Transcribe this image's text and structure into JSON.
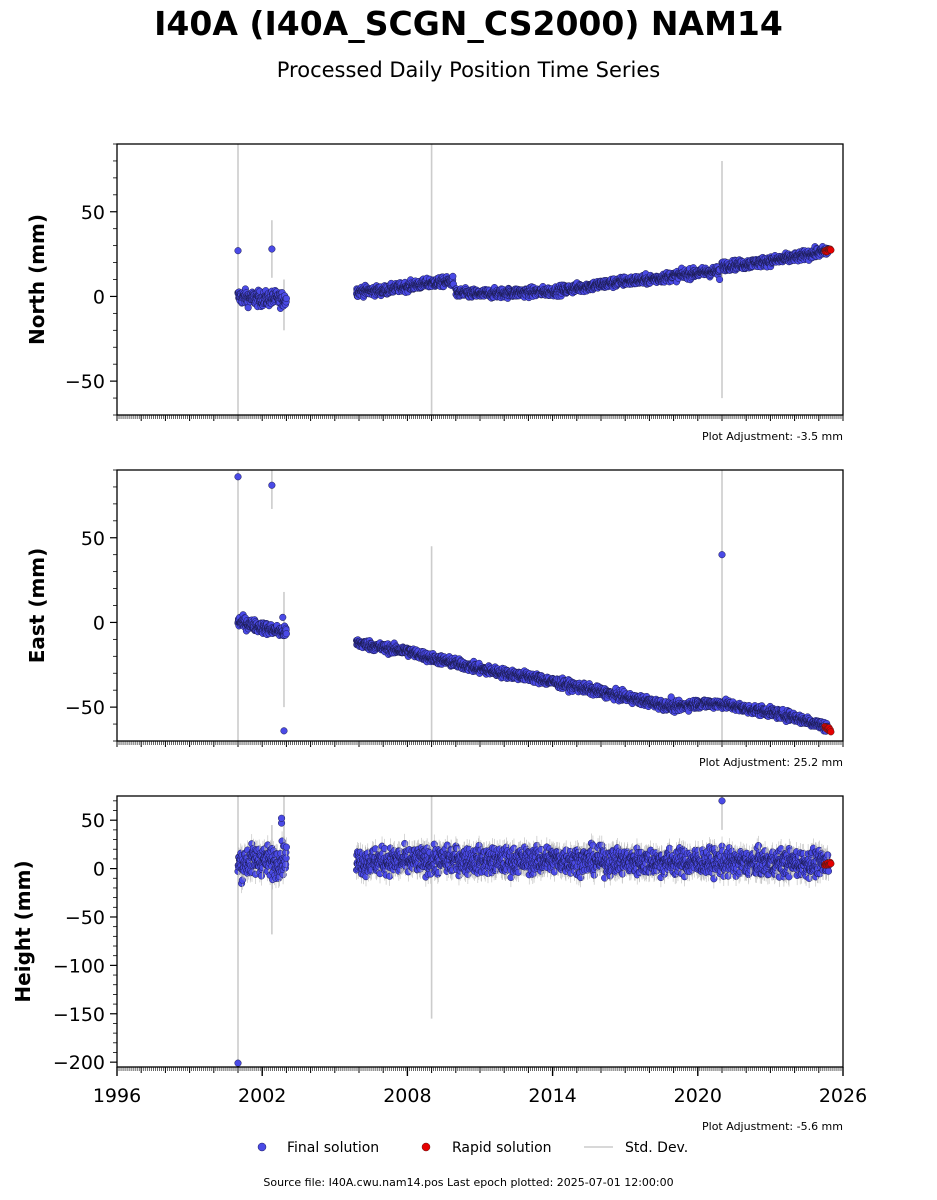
{
  "header": {
    "title": "I40A (I40A_SCGN_CS2000) NAM14",
    "subtitle": "Processed Daily Position Time Series"
  },
  "legend": {
    "final": "Final solution",
    "rapid": "Rapid solution",
    "std": "Std. Dev."
  },
  "footer": {
    "source": "Source file: I40A.cwu.nam14.pos  Last epoch plotted: 2025-07-01 12:00:00"
  },
  "colors": {
    "final": "#4a4ae6",
    "rapid": "#e60000",
    "std": "#cccccc"
  },
  "chart_data": [
    {
      "type": "scatter",
      "ylabel": "North (mm)",
      "adjustment": "Plot Adjustment: -3.5 mm",
      "xlim": [
        1996,
        2026
      ],
      "ylim": [
        -70,
        90
      ],
      "yticks": [
        50,
        0,
        -50
      ],
      "ytick_labels": [
        "50",
        "0",
        "−50"
      ],
      "final_series": {
        "segments": [
          {
            "x": [
              2001.0,
              2001.5,
              2002.0,
              2002.5,
              2003.0
            ],
            "y": [
              0,
              -1,
              -1.5,
              -1,
              -2
            ],
            "scatter": 4
          },
          {
            "x": [
              2005.9,
              2007.0,
              2008.0,
              2009.0,
              2009.9
            ],
            "y": [
              3,
              3.5,
              6,
              8,
              9
            ],
            "scatter": 2.5
          },
          {
            "x": [
              2010.0,
              2011.0,
              2012.0,
              2013.0,
              2014.0,
              2015.0,
              2016.0,
              2017.0,
              2018.0,
              2019.0,
              2020.0,
              2020.9
            ],
            "y": [
              2,
              1.5,
              2,
              2.5,
              3,
              5,
              7,
              9,
              10,
              12,
              14,
              15
            ],
            "scatter": 2.5
          },
          {
            "x": [
              2021.0,
              2022.0,
              2023.0,
              2024.0,
              2025.0,
              2025.4
            ],
            "y": [
              18,
              19,
              21,
              23,
              26,
              27
            ],
            "scatter": 2.5
          }
        ],
        "outliers": [
          [
            2001.0,
            27
          ],
          [
            2002.4,
            28
          ],
          [
            2020.9,
            10
          ]
        ]
      },
      "rapid_series": {
        "x": [
          2025.25,
          2025.5
        ],
        "y": [
          27,
          27.5
        ]
      },
      "std_dev_bars": [
        [
          2001.0,
          -70,
          90
        ],
        [
          2002.4,
          11,
          45
        ],
        [
          2002.9,
          -20,
          10
        ],
        [
          2009.0,
          -70,
          90
        ],
        [
          2021.0,
          -60,
          80
        ]
      ]
    },
    {
      "type": "scatter",
      "ylabel": "East (mm)",
      "adjustment": "Plot Adjustment: 25.2 mm",
      "xlim": [
        1996,
        2026
      ],
      "ylim": [
        -70,
        90
      ],
      "yticks": [
        50,
        0,
        -50
      ],
      "ytick_labels": [
        "50",
        "0",
        "−50"
      ],
      "final_series": {
        "segments": [
          {
            "x": [
              2001.0,
              2001.5,
              2002.0,
              2002.5,
              2003.0
            ],
            "y": [
              0.5,
              -1,
              -3,
              -4.5,
              -6
            ],
            "scatter": 3
          },
          {
            "x": [
              2005.9,
              2007.0,
              2008.0,
              2009.0,
              2010.0,
              2011.0,
              2012.0,
              2013.0,
              2014.0,
              2015.0,
              2016.0,
              2017.0,
              2018.0,
              2019.0,
              2020.0,
              2021.0,
              2022.0,
              2023.0,
              2024.0,
              2025.0,
              2025.4
            ],
            "y": [
              -12,
              -15,
              -17,
              -21,
              -24,
              -27.5,
              -30,
              -32,
              -35,
              -38,
              -41,
              -44,
              -47,
              -50,
              -48,
              -48,
              -51,
              -53,
              -56,
              -60,
              -62
            ],
            "scatter": 2.5
          }
        ],
        "outliers": [
          [
            2001.0,
            86
          ],
          [
            2002.4,
            81
          ],
          [
            2002.9,
            -64
          ],
          [
            2002.85,
            3
          ],
          [
            2021.0,
            40
          ],
          [
            2018.9,
            -44
          ]
        ]
      },
      "rapid_series": {
        "x": [
          2025.25,
          2025.5
        ],
        "y": [
          -62,
          -64
        ]
      },
      "std_dev_bars": [
        [
          2001.0,
          -70,
          90
        ],
        [
          2002.4,
          67,
          90
        ],
        [
          2002.9,
          -50,
          18
        ],
        [
          2009.0,
          -70,
          45
        ],
        [
          2021.0,
          -70,
          90
        ]
      ]
    },
    {
      "type": "scatter",
      "ylabel": "Height (mm)",
      "adjustment": "Plot Adjustment: -5.6 mm",
      "xlim": [
        1996,
        2026
      ],
      "ylim": [
        -205,
        75
      ],
      "yticks": [
        50,
        0,
        -50,
        -100,
        -150,
        -200
      ],
      "ytick_labels": [
        "50",
        "0",
        "−50",
        "−100",
        "−150",
        "−200"
      ],
      "xticks": [
        1996,
        2002,
        2008,
        2014,
        2020,
        2026
      ],
      "final_series": {
        "segments": [
          {
            "x": [
              2001.0,
              2001.5,
              2002.0,
              2002.5,
              2003.0
            ],
            "y": [
              5,
              8,
              10,
              6,
              12
            ],
            "scatter": 14
          },
          {
            "x": [
              2005.9,
              2008.0,
              2010.0,
              2012.0,
              2014.0,
              2016.0,
              2018.0,
              2020.0,
              2022.0,
              2024.0,
              2025.4
            ],
            "y": [
              7,
              8,
              9,
              8,
              9,
              8,
              7,
              7,
              6,
              6,
              5
            ],
            "scatter": 12
          }
        ],
        "outliers": [
          [
            2001.0,
            -201
          ],
          [
            2002.8,
            47
          ],
          [
            2002.8,
            52
          ],
          [
            2021.0,
            70
          ]
        ]
      },
      "rapid_series": {
        "x": [
          2025.25,
          2025.5
        ],
        "y": [
          4,
          6
        ]
      },
      "std_dev_bars": [
        [
          2001.0,
          -205,
          75
        ],
        [
          2002.4,
          -68,
          45
        ],
        [
          2002.9,
          20,
          75
        ],
        [
          2009.0,
          -155,
          75
        ],
        [
          2021.0,
          40,
          75
        ]
      ]
    }
  ]
}
